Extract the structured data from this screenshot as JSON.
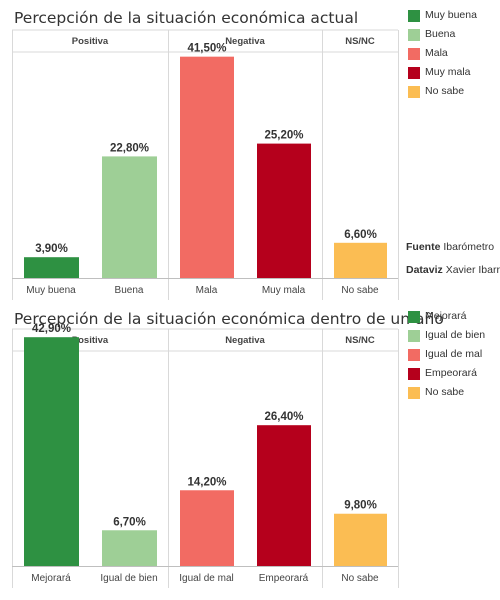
{
  "chart_data": [
    {
      "type": "bar",
      "title": "Percepción de la situación económica actual",
      "groups": [
        {
          "label": "Positiva",
          "categories": [
            "Muy buena",
            "Buena"
          ]
        },
        {
          "label": "Negativa",
          "categories": [
            "Mala",
            "Muy mala"
          ]
        },
        {
          "label": "NS/NC",
          "categories": [
            "No sabe"
          ]
        }
      ],
      "categories": [
        "Muy buena",
        "Buena",
        "Mala",
        "Muy mala",
        "No sabe"
      ],
      "values": [
        3.9,
        22.8,
        41.5,
        25.2,
        6.6
      ],
      "value_labels": [
        "3,90%",
        "22,80%",
        "41,50%",
        "25,20%",
        "6,60%"
      ],
      "colors": [
        "#2e9142",
        "#9ecf96",
        "#f26b63",
        "#b5001c",
        "#fbbd53"
      ],
      "legend": [
        {
          "label": "Muy buena",
          "color": "#2e9142"
        },
        {
          "label": "Buena",
          "color": "#9ecf96"
        },
        {
          "label": "Mala",
          "color": "#f26b63"
        },
        {
          "label": "Muy mala",
          "color": "#b5001c"
        },
        {
          "label": "No sabe",
          "color": "#fbbd53"
        }
      ],
      "legend_position": "right",
      "ylim": [
        0,
        45
      ],
      "grid": false
    },
    {
      "type": "bar",
      "title": "Percepción de la situación económica dentro de un año",
      "groups": [
        {
          "label": "Positiva",
          "categories": [
            "Mejorará",
            "Igual de bien"
          ]
        },
        {
          "label": "Negativa",
          "categories": [
            "Igual de mal",
            "Empeorará"
          ]
        },
        {
          "label": "NS/NC",
          "categories": [
            "No sabe"
          ]
        }
      ],
      "categories": [
        "Mejorará",
        "Igual de bien",
        "Igual de mal",
        "Empeorará",
        "No sabe"
      ],
      "values": [
        42.9,
        6.7,
        14.2,
        26.4,
        9.8
      ],
      "value_labels": [
        "42,90%",
        "6,70%",
        "14,20%",
        "26,40%",
        "9,80%"
      ],
      "colors": [
        "#2e9142",
        "#9ecf96",
        "#f26b63",
        "#b5001c",
        "#fbbd53"
      ],
      "legend": [
        {
          "label": "Mejorará",
          "color": "#2e9142"
        },
        {
          "label": "Igual de bien",
          "color": "#9ecf96"
        },
        {
          "label": "Igual de mal",
          "color": "#f26b63"
        },
        {
          "label": "Empeorará",
          "color": "#b5001c"
        },
        {
          "label": "No sabe",
          "color": "#fbbd53"
        }
      ],
      "legend_position": "right",
      "ylim": [
        0,
        45
      ],
      "grid": false
    }
  ],
  "source": {
    "fuente_key": "Fuente",
    "fuente_value": "Ibarómetro",
    "dataviz_key": "Dataviz",
    "dataviz_value": "Xavier Ibarre"
  },
  "colors": {
    "panel_border": "#d9d9d9",
    "header_text": "#444444"
  }
}
